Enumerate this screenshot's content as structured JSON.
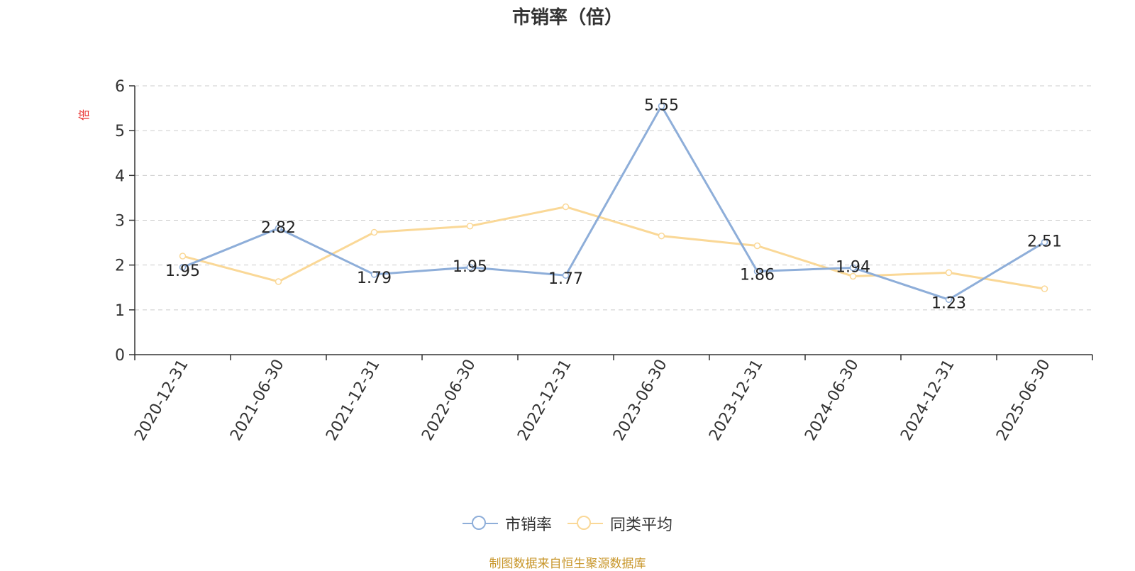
{
  "colors": {
    "series_main": "#8eaed9",
    "series_avg": "#fad897",
    "axis": "#333333",
    "grid": "#cccccc",
    "ylabel": "#e8312f",
    "source": "#c8962a"
  },
  "footer": {
    "source": "制图数据来自恒生聚源数据库"
  },
  "chart_data": {
    "type": "line",
    "title": "市销率（倍）",
    "ylabel": "倍",
    "xlabel": "",
    "ylim": [
      0,
      6
    ],
    "yticks": [
      0,
      1,
      2,
      3,
      4,
      5,
      6
    ],
    "grid": true,
    "legend_position": "bottom",
    "categories": [
      "2020-12-31",
      "2021-06-30",
      "2021-12-31",
      "2022-06-30",
      "2022-12-31",
      "2023-06-30",
      "2023-12-31",
      "2024-06-30",
      "2024-12-31",
      "2025-06-30"
    ],
    "series": [
      {
        "name": "市销率",
        "values": [
          1.95,
          2.82,
          1.79,
          1.95,
          1.77,
          5.55,
          1.86,
          1.94,
          1.23,
          2.51
        ],
        "labels": [
          "1.95",
          "2.82",
          "1.79",
          "1.95",
          "1.77",
          "5.55",
          "1.86",
          "1.94",
          "1.23",
          "2.51"
        ]
      },
      {
        "name": "同类平均",
        "values": [
          2.2,
          1.63,
          2.73,
          2.87,
          3.3,
          2.65,
          2.43,
          1.75,
          1.83,
          1.47
        ]
      }
    ]
  }
}
